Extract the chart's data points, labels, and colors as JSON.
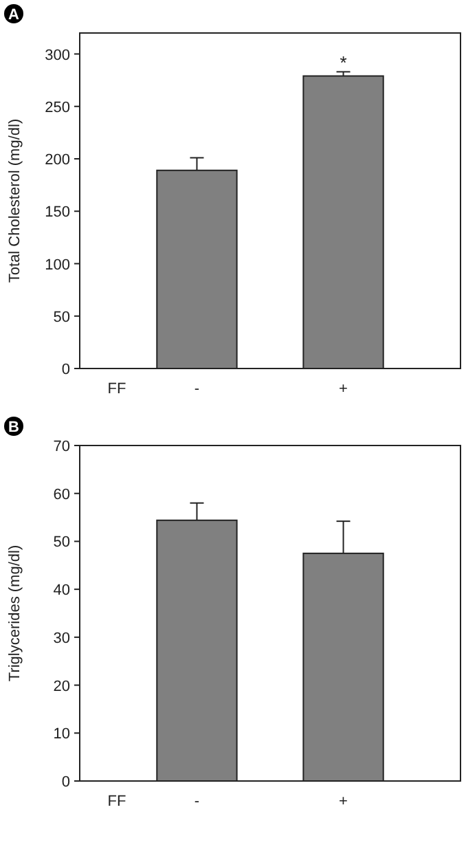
{
  "chart_data": [
    {
      "type": "bar",
      "title": "A",
      "categories": [
        "-",
        "+"
      ],
      "xlabel": "FF",
      "ylabel": "Total Cholesterol (mg/dl)",
      "values": [
        189,
        279
      ],
      "errors": [
        12,
        4
      ],
      "color": "#808080",
      "ylim": [
        0,
        320
      ],
      "yticks": [
        0,
        50,
        100,
        150,
        200,
        250,
        300
      ],
      "annotations": [
        {
          "text": "*",
          "x": "+",
          "y": 283
        }
      ]
    },
    {
      "type": "bar",
      "title": "B",
      "categories": [
        "-",
        "+"
      ],
      "xlabel": "FF",
      "ylabel": "Triglycerides (mg/dl)",
      "values": [
        54.4,
        47.5
      ],
      "errors": [
        3.6,
        6.7
      ],
      "color": "#808080",
      "ylim": [
        0,
        70
      ],
      "yticks": [
        0,
        10,
        20,
        30,
        40,
        50,
        60,
        70
      ]
    }
  ]
}
